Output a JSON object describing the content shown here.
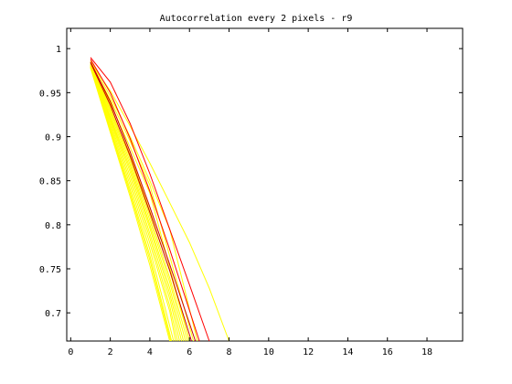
{
  "chart_data": {
    "type": "line",
    "title": "Autocorrelation every 2 pixels - r9",
    "xlabel": "",
    "ylabel": "",
    "xlim": [
      -0.2,
      19.8
    ],
    "ylim": [
      0.668,
      1.023
    ],
    "x_ticks": [
      0,
      2,
      4,
      6,
      8,
      10,
      12,
      14,
      16,
      18
    ],
    "y_ticks": [
      0.7,
      0.75,
      0.8,
      0.85,
      0.9,
      0.95,
      1
    ],
    "x_tick_labels": [
      "0",
      "2",
      "4",
      "6",
      "8",
      "10",
      "12",
      "14",
      "16",
      "18"
    ],
    "y_tick_labels": [
      "0.7",
      "0.75",
      "0.8",
      "0.85",
      "0.9",
      "0.95",
      "1"
    ],
    "grid": false,
    "colors": {
      "yellow": "#ffff00",
      "red": "#ff0000",
      "darkred": "#cc0000"
    },
    "series": [
      {
        "color": "#ffff00",
        "x": [
          1,
          2,
          3,
          4,
          5,
          6,
          7,
          8
        ],
        "y": [
          0.985,
          0.952,
          0.912,
          0.87,
          0.825,
          0.78,
          0.728,
          0.668
        ]
      },
      {
        "color": "#ffff00",
        "x": [
          1,
          2,
          3,
          4,
          5,
          6
        ],
        "y": [
          0.982,
          0.934,
          0.88,
          0.816,
          0.748,
          0.668
        ]
      },
      {
        "color": "#ffff00",
        "x": [
          1,
          2,
          3,
          4,
          5,
          5.9
        ],
        "y": [
          0.982,
          0.931,
          0.876,
          0.81,
          0.74,
          0.668
        ]
      },
      {
        "color": "#ffff00",
        "x": [
          1,
          2,
          3,
          4,
          5,
          5.8
        ],
        "y": [
          0.982,
          0.929,
          0.872,
          0.805,
          0.735,
          0.668
        ]
      },
      {
        "color": "#ffff00",
        "x": [
          1,
          2,
          3,
          4,
          5,
          5.7
        ],
        "y": [
          0.981,
          0.926,
          0.868,
          0.8,
          0.728,
          0.668
        ]
      },
      {
        "color": "#ffff00",
        "x": [
          1,
          2,
          3,
          4,
          5,
          5.6
        ],
        "y": [
          0.981,
          0.923,
          0.864,
          0.796,
          0.722,
          0.668
        ]
      },
      {
        "color": "#ffff00",
        "x": [
          1,
          2,
          3,
          4,
          5,
          5.5
        ],
        "y": [
          0.98,
          0.921,
          0.86,
          0.79,
          0.716,
          0.668
        ]
      },
      {
        "color": "#ffff00",
        "x": [
          1,
          2,
          3,
          4,
          5,
          5.4
        ],
        "y": [
          0.98,
          0.919,
          0.855,
          0.785,
          0.708,
          0.668
        ]
      },
      {
        "color": "#ffff00",
        "x": [
          1,
          2,
          3,
          4,
          5,
          5.3
        ],
        "y": [
          0.98,
          0.916,
          0.85,
          0.779,
          0.702,
          0.668
        ]
      },
      {
        "color": "#ffff00",
        "x": [
          1,
          2,
          3,
          4,
          5.2
        ],
        "y": [
          0.979,
          0.913,
          0.845,
          0.772,
          0.668
        ]
      },
      {
        "color": "#ffff00",
        "x": [
          1,
          2,
          3,
          4,
          5.1
        ],
        "y": [
          0.979,
          0.91,
          0.84,
          0.765,
          0.668
        ]
      },
      {
        "color": "#ffff00",
        "x": [
          1,
          2,
          3,
          4,
          5.05
        ],
        "y": [
          0.979,
          0.908,
          0.836,
          0.76,
          0.668
        ]
      },
      {
        "color": "#ffff00",
        "x": [
          1,
          2,
          3,
          4,
          5.0
        ],
        "y": [
          0.978,
          0.905,
          0.832,
          0.754,
          0.668
        ]
      },
      {
        "color": "#ffff00",
        "x": [
          1,
          2,
          3,
          4,
          6.2
        ],
        "y": [
          0.984,
          0.942,
          0.895,
          0.845,
          0.668
        ]
      },
      {
        "color": "#ffff00",
        "x": [
          1,
          2,
          3,
          4,
          6.0
        ],
        "y": [
          0.983,
          0.938,
          0.888,
          0.836,
          0.668
        ]
      },
      {
        "color": "#ffff00",
        "x": [
          1,
          2,
          3,
          4,
          5,
          6.4
        ],
        "y": [
          0.986,
          0.946,
          0.9,
          0.85,
          0.795,
          0.668
        ]
      },
      {
        "color": "#cc0000",
        "x": [
          1,
          2,
          3,
          4,
          5,
          6.3
        ],
        "y": [
          0.985,
          0.94,
          0.883,
          0.82,
          0.755,
          0.668
        ]
      },
      {
        "color": "#cc0000",
        "x": [
          1,
          2,
          3,
          4,
          5,
          6.1
        ],
        "y": [
          0.984,
          0.936,
          0.878,
          0.814,
          0.748,
          0.668
        ]
      },
      {
        "color": "#ff0000",
        "x": [
          1,
          2,
          3,
          4,
          5,
          6,
          7.0
        ],
        "y": [
          0.99,
          0.962,
          0.915,
          0.858,
          0.795,
          0.732,
          0.668
        ]
      },
      {
        "color": "#ff0000",
        "x": [
          1,
          2,
          3,
          4,
          5,
          6.5
        ],
        "y": [
          0.988,
          0.95,
          0.898,
          0.838,
          0.772,
          0.668
        ]
      }
    ]
  }
}
